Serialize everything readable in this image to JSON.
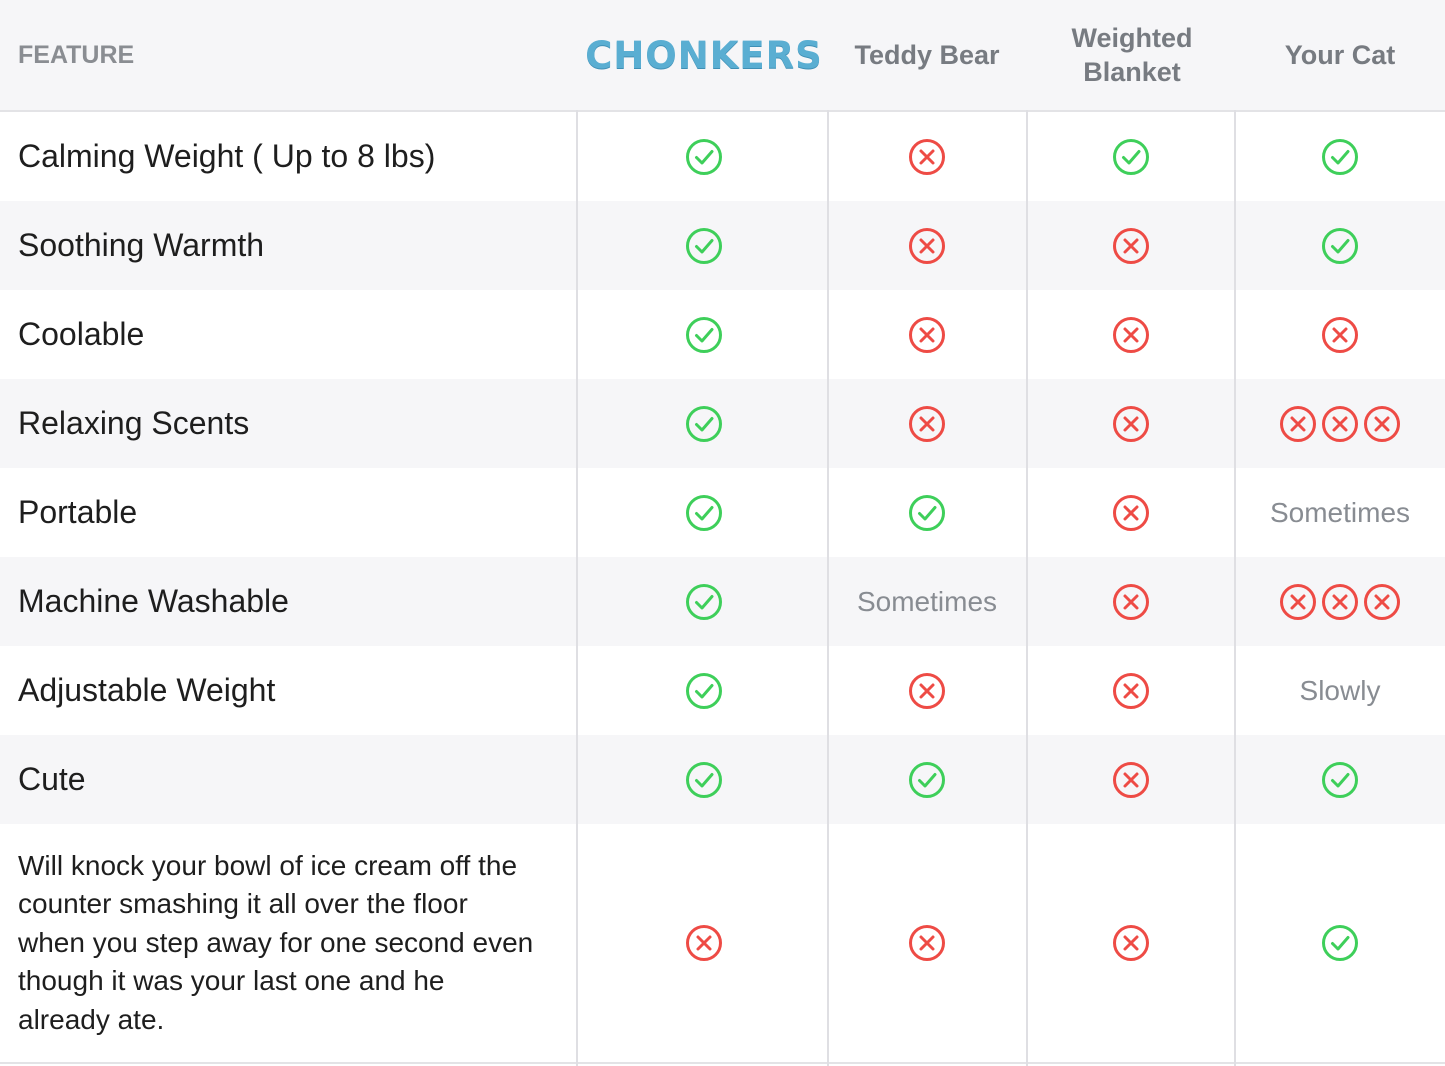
{
  "header": {
    "feature_label": "FEATURE",
    "columns": [
      "CHONKERS",
      "Teddy Bear",
      "Weighted Blanket",
      "Your Cat"
    ]
  },
  "colors": {
    "check": "#3ecf5a",
    "cross": "#ee4b45",
    "brand": "#5aaed2",
    "muted_text": "#888c92"
  },
  "rows": [
    {
      "feature": "Calming Weight ( Up to 8 lbs)",
      "cells": [
        "check",
        "cross",
        "check",
        "check"
      ]
    },
    {
      "feature": "Soothing Warmth",
      "cells": [
        "check",
        "cross",
        "cross",
        "check"
      ]
    },
    {
      "feature": "Coolable",
      "cells": [
        "check",
        "cross",
        "cross",
        "cross"
      ]
    },
    {
      "feature": "Relaxing Scents",
      "cells": [
        "check",
        "cross",
        "cross",
        "cross3"
      ]
    },
    {
      "feature": "Portable",
      "cells": [
        "check",
        "check",
        "cross",
        "Sometimes"
      ]
    },
    {
      "feature": "Machine Washable",
      "cells": [
        "check",
        "Sometimes",
        "cross",
        "cross3"
      ]
    },
    {
      "feature": "Adjustable Weight",
      "cells": [
        "check",
        "cross",
        "cross",
        "Slowly"
      ]
    },
    {
      "feature": "Cute",
      "cells": [
        "check",
        "check",
        "cross",
        "check"
      ]
    },
    {
      "feature": "Will knock your bowl of ice cream off the counter smashing it all over the floor when you step away for one second even though it was your last one and he already ate.",
      "cells": [
        "cross",
        "cross",
        "cross",
        "check"
      ]
    }
  ]
}
